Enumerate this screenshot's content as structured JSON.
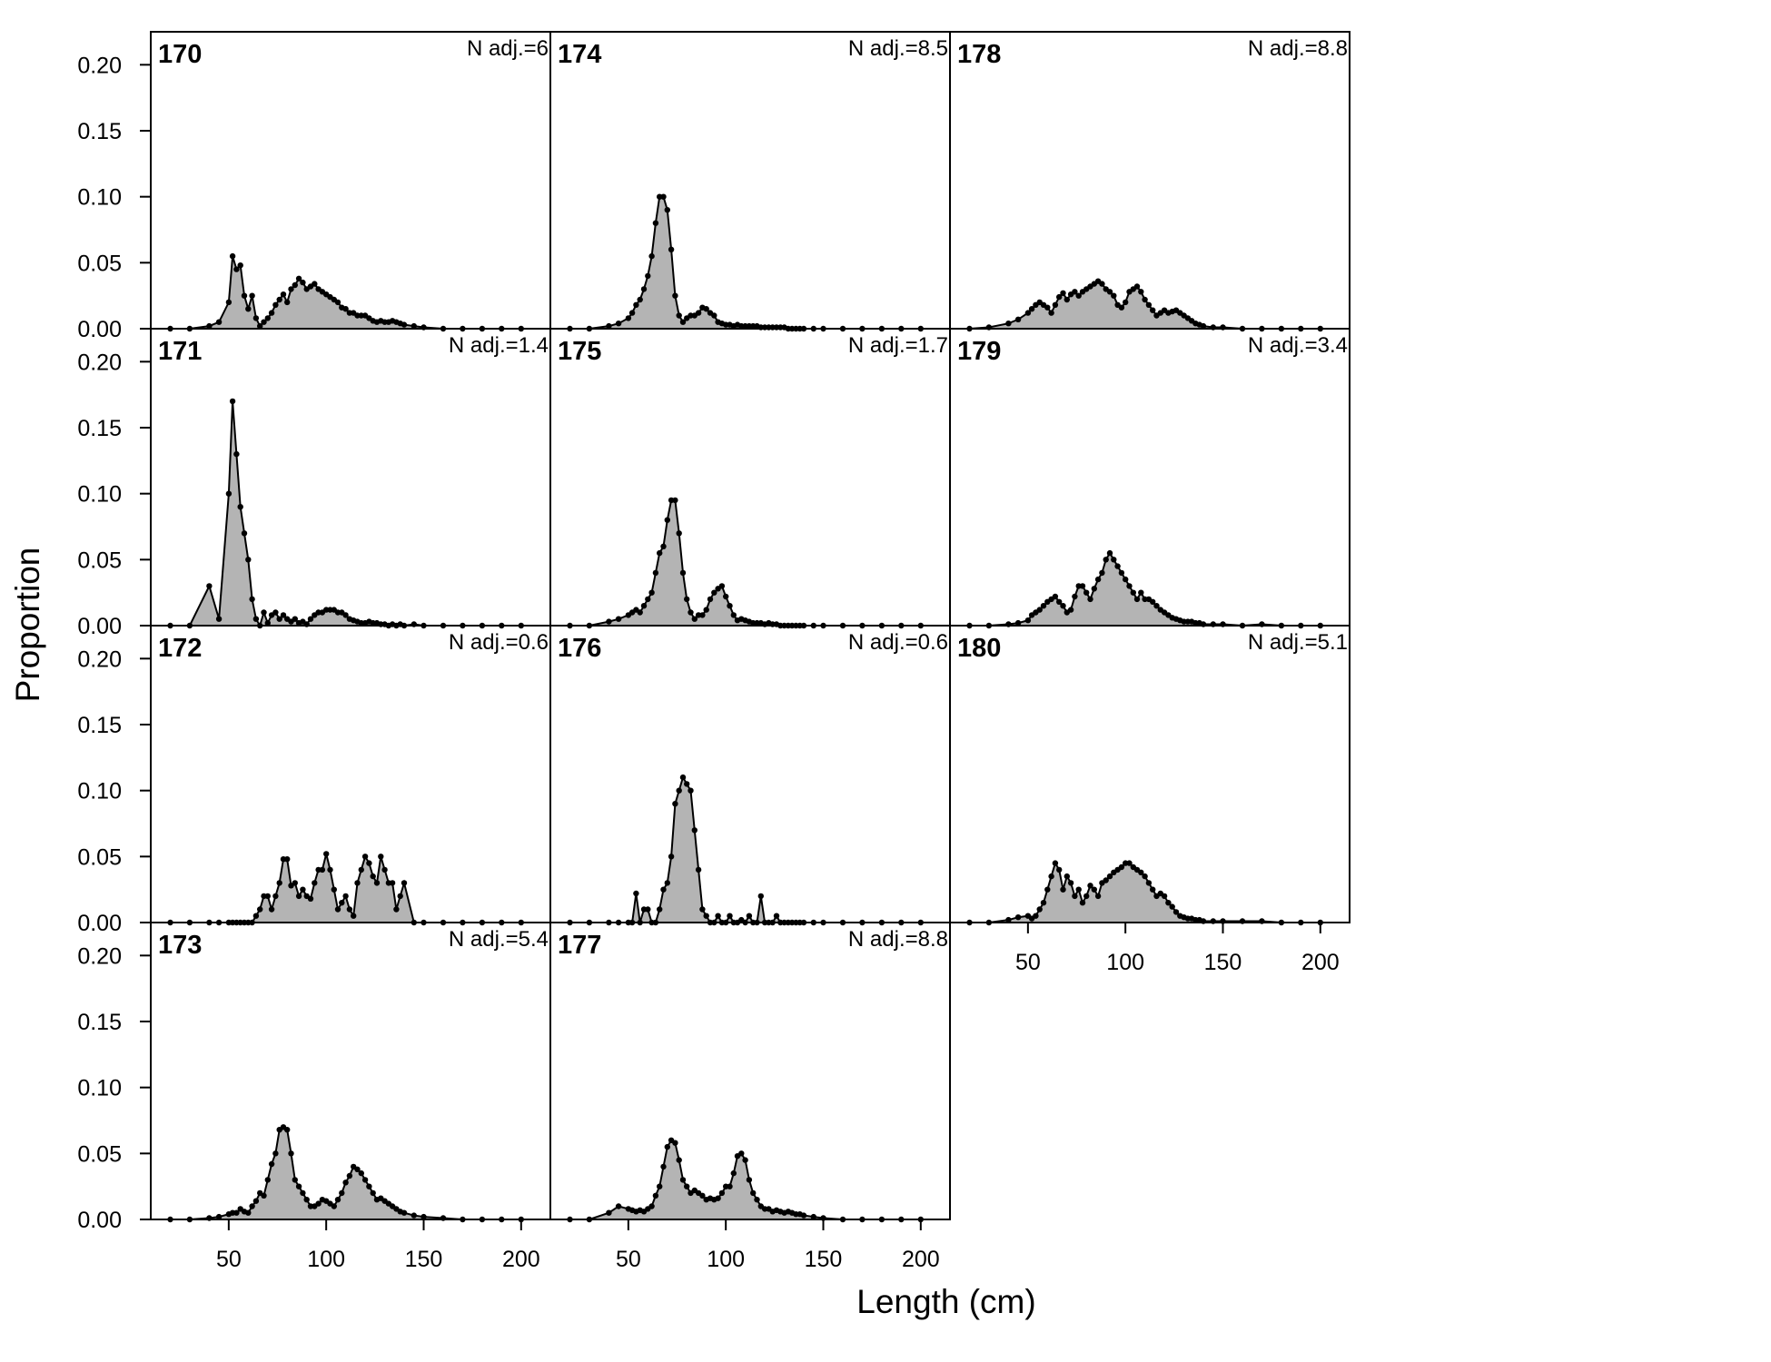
{
  "chart_data": {
    "type": "area",
    "xlabel": "Length (cm)",
    "ylabel": "Proportion",
    "xlim": [
      10,
      215
    ],
    "ylim": [
      0,
      0.225
    ],
    "xticks": [
      "50",
      "100",
      "150",
      "200"
    ],
    "yticks": [
      "0.00",
      "0.05",
      "0.10",
      "0.15",
      "0.20"
    ],
    "grid": false,
    "x_points": [
      20,
      30,
      40,
      45,
      50,
      52,
      54,
      56,
      58,
      60,
      62,
      64,
      66,
      68,
      70,
      72,
      74,
      76,
      78,
      80,
      82,
      84,
      86,
      88,
      90,
      92,
      94,
      96,
      98,
      100,
      102,
      104,
      106,
      108,
      110,
      112,
      114,
      116,
      118,
      120,
      122,
      124,
      126,
      128,
      130,
      132,
      134,
      136,
      138,
      140,
      145,
      150,
      160,
      170,
      180,
      190,
      200
    ],
    "panels": [
      {
        "id": "170",
        "n_adj": "N adj.=6",
        "values": [
          0,
          0,
          0.002,
          0.005,
          0.02,
          0.055,
          0.045,
          0.048,
          0.025,
          0.015,
          0.025,
          0.008,
          0.002,
          0.005,
          0.008,
          0.012,
          0.018,
          0.022,
          0.026,
          0.02,
          0.03,
          0.033,
          0.038,
          0.035,
          0.03,
          0.032,
          0.034,
          0.03,
          0.028,
          0.026,
          0.024,
          0.022,
          0.02,
          0.016,
          0.015,
          0.012,
          0.012,
          0.01,
          0.01,
          0.01,
          0.008,
          0.006,
          0.005,
          0.006,
          0.005,
          0.005,
          0.006,
          0.005,
          0.004,
          0.003,
          0.002,
          0.001,
          0,
          0,
          0,
          0,
          0
        ]
      },
      {
        "id": "171",
        "n_adj": "N adj.=1.4",
        "values": [
          0,
          0,
          0.03,
          0.005,
          0.1,
          0.17,
          0.13,
          0.09,
          0.07,
          0.05,
          0.02,
          0.005,
          0,
          0.01,
          0.002,
          0.008,
          0.01,
          0.005,
          0.008,
          0.005,
          0.003,
          0.005,
          0.002,
          0.003,
          0.001,
          0.005,
          0.008,
          0.01,
          0.01,
          0.012,
          0.012,
          0.012,
          0.01,
          0.01,
          0.008,
          0.005,
          0.004,
          0.003,
          0.002,
          0.002,
          0.003,
          0.002,
          0.002,
          0.001,
          0.001,
          0,
          0.001,
          0,
          0.001,
          0,
          0.001,
          0,
          0,
          0,
          0,
          0,
          0
        ]
      },
      {
        "id": "172",
        "n_adj": "N adj.=0.6",
        "values": [
          0,
          0,
          0,
          0,
          0,
          0,
          0,
          0,
          0,
          0,
          0,
          0.005,
          0.01,
          0.02,
          0.02,
          0.01,
          0.02,
          0.03,
          0.048,
          0.048,
          0.028,
          0.03,
          0.02,
          0.025,
          0.02,
          0.018,
          0.03,
          0.04,
          0.04,
          0.052,
          0.04,
          0.025,
          0.01,
          0.015,
          0.02,
          0.01,
          0.005,
          0.03,
          0.04,
          0.05,
          0.045,
          0.035,
          0.03,
          0.05,
          0.04,
          0.03,
          0.03,
          0.01,
          0.02,
          0.03,
          0,
          0,
          0,
          0,
          0,
          0,
          0
        ]
      },
      {
        "id": "173",
        "n_adj": "N adj.=5.4",
        "values": [
          0,
          0,
          0.001,
          0.002,
          0.004,
          0.005,
          0.005,
          0.008,
          0.006,
          0.005,
          0.01,
          0.014,
          0.02,
          0.018,
          0.03,
          0.042,
          0.05,
          0.068,
          0.07,
          0.068,
          0.05,
          0.03,
          0.025,
          0.02,
          0.015,
          0.01,
          0.01,
          0.012,
          0.015,
          0.014,
          0.012,
          0.01,
          0.015,
          0.02,
          0.028,
          0.033,
          0.04,
          0.038,
          0.035,
          0.03,
          0.025,
          0.02,
          0.015,
          0.016,
          0.014,
          0.012,
          0.01,
          0.008,
          0.006,
          0.005,
          0.003,
          0.002,
          0.001,
          0,
          0,
          0,
          0
        ]
      },
      {
        "id": "174",
        "n_adj": "N adj.=8.5",
        "values": [
          0,
          0,
          0.002,
          0.004,
          0.008,
          0.012,
          0.018,
          0.022,
          0.03,
          0.04,
          0.055,
          0.08,
          0.1,
          0.1,
          0.09,
          0.06,
          0.025,
          0.01,
          0.005,
          0.008,
          0.01,
          0.01,
          0.012,
          0.016,
          0.015,
          0.012,
          0.01,
          0.005,
          0.004,
          0.003,
          0.003,
          0.002,
          0.003,
          0.002,
          0.002,
          0.002,
          0.002,
          0.002,
          0.001,
          0.001,
          0.001,
          0.001,
          0.001,
          0.001,
          0.001,
          0,
          0,
          0,
          0,
          0,
          0,
          0,
          0,
          0,
          0,
          0,
          0
        ]
      },
      {
        "id": "175",
        "n_adj": "N adj.=1.7",
        "values": [
          0,
          0,
          0.003,
          0.005,
          0.008,
          0.01,
          0.012,
          0.01,
          0.015,
          0.02,
          0.025,
          0.04,
          0.055,
          0.06,
          0.08,
          0.095,
          0.095,
          0.07,
          0.04,
          0.02,
          0.01,
          0.005,
          0.008,
          0.008,
          0.012,
          0.02,
          0.025,
          0.028,
          0.03,
          0.022,
          0.015,
          0.008,
          0.004,
          0.005,
          0.004,
          0.003,
          0.002,
          0.002,
          0.002,
          0.001,
          0.002,
          0.001,
          0.001,
          0,
          0,
          0,
          0,
          0,
          0,
          0,
          0,
          0,
          0,
          0,
          0,
          0,
          0
        ]
      },
      {
        "id": "176",
        "n_adj": "N adj.=0.6",
        "values": [
          0,
          0,
          0,
          0,
          0,
          0,
          0.022,
          0,
          0.01,
          0.01,
          0,
          0,
          0.01,
          0.025,
          0.03,
          0.05,
          0.09,
          0.1,
          0.11,
          0.105,
          0.1,
          0.07,
          0.04,
          0.01,
          0.005,
          0,
          0,
          0.005,
          0,
          0,
          0.005,
          0,
          0,
          0.002,
          0,
          0.005,
          0,
          0,
          0.02,
          0,
          0,
          0,
          0.005,
          0,
          0,
          0,
          0,
          0,
          0,
          0,
          0,
          0,
          0,
          0,
          0,
          0,
          0
        ]
      },
      {
        "id": "177",
        "n_adj": "N adj.=8.8",
        "values": [
          0,
          0,
          0.005,
          0.01,
          0.008,
          0.007,
          0.006,
          0.007,
          0.006,
          0.008,
          0.01,
          0.018,
          0.025,
          0.04,
          0.055,
          0.06,
          0.058,
          0.045,
          0.03,
          0.025,
          0.02,
          0.022,
          0.02,
          0.018,
          0.015,
          0.016,
          0.015,
          0.016,
          0.02,
          0.025,
          0.025,
          0.035,
          0.048,
          0.05,
          0.045,
          0.03,
          0.02,
          0.015,
          0.01,
          0.008,
          0.008,
          0.006,
          0.007,
          0.006,
          0.005,
          0.006,
          0.005,
          0.004,
          0.004,
          0.003,
          0.002,
          0.001,
          0,
          0,
          0,
          0,
          0
        ]
      },
      {
        "id": "178",
        "n_adj": "N adj.=8.8",
        "values": [
          0,
          0.001,
          0.004,
          0.007,
          0.012,
          0.015,
          0.018,
          0.02,
          0.018,
          0.016,
          0.012,
          0.018,
          0.024,
          0.027,
          0.022,
          0.026,
          0.028,
          0.025,
          0.028,
          0.03,
          0.032,
          0.034,
          0.036,
          0.034,
          0.03,
          0.028,
          0.025,
          0.018,
          0.016,
          0.02,
          0.028,
          0.03,
          0.032,
          0.028,
          0.022,
          0.018,
          0.014,
          0.01,
          0.012,
          0.014,
          0.012,
          0.013,
          0.014,
          0.012,
          0.01,
          0.008,
          0.006,
          0.004,
          0.003,
          0.002,
          0.001,
          0.001,
          0,
          0,
          0,
          0,
          0
        ]
      },
      {
        "id": "179",
        "n_adj": "N adj.=3.4",
        "values": [
          0,
          0,
          0.001,
          0.002,
          0.004,
          0.008,
          0.01,
          0.012,
          0.015,
          0.018,
          0.02,
          0.022,
          0.018,
          0.015,
          0.01,
          0.012,
          0.022,
          0.03,
          0.03,
          0.025,
          0.02,
          0.028,
          0.035,
          0.04,
          0.05,
          0.055,
          0.05,
          0.045,
          0.04,
          0.035,
          0.03,
          0.025,
          0.02,
          0.025,
          0.02,
          0.02,
          0.018,
          0.015,
          0.012,
          0.01,
          0.008,
          0.006,
          0.005,
          0.004,
          0.003,
          0.003,
          0.003,
          0.002,
          0.002,
          0.001,
          0.001,
          0.001,
          0,
          0.001,
          0,
          0,
          0
        ]
      },
      {
        "id": "180",
        "n_adj": "N adj.=5.1",
        "values": [
          0,
          0,
          0.002,
          0.004,
          0.005,
          0.003,
          0.005,
          0.01,
          0.015,
          0.025,
          0.035,
          0.045,
          0.04,
          0.025,
          0.035,
          0.03,
          0.02,
          0.025,
          0.015,
          0.02,
          0.028,
          0.025,
          0.02,
          0.03,
          0.032,
          0.035,
          0.038,
          0.04,
          0.042,
          0.045,
          0.045,
          0.042,
          0.04,
          0.038,
          0.035,
          0.03,
          0.025,
          0.02,
          0.022,
          0.02,
          0.015,
          0.012,
          0.008,
          0.005,
          0.004,
          0.003,
          0.003,
          0.002,
          0.002,
          0.001,
          0.001,
          0.001,
          0.001,
          0.001,
          0,
          0,
          0
        ]
      }
    ]
  }
}
